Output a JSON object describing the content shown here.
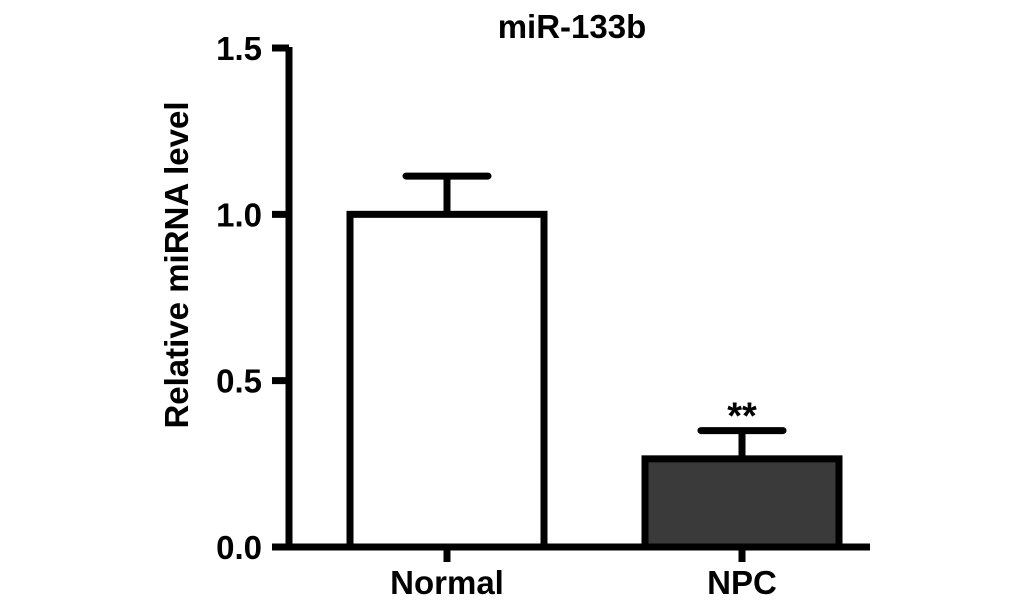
{
  "chart_data": {
    "type": "bar",
    "title": "miR-133b",
    "ylabel": "Relative miRNA level",
    "xlabel": "",
    "categories": [
      "Normal",
      "NPC"
    ],
    "values": [
      1.0,
      0.265
    ],
    "errors": [
      0.115,
      0.085
    ],
    "annotations": [
      "",
      "**"
    ],
    "ylim": [
      0,
      1.5
    ],
    "yticks": [
      0.0,
      0.5,
      1.0,
      1.5
    ],
    "ytick_labels": [
      "0.0",
      "0.5",
      "1.0",
      "1.5"
    ],
    "grid": false,
    "colors": {
      "bar_fills": [
        "#ffffff",
        "#3a3a3a"
      ],
      "stroke": "#000000"
    }
  }
}
